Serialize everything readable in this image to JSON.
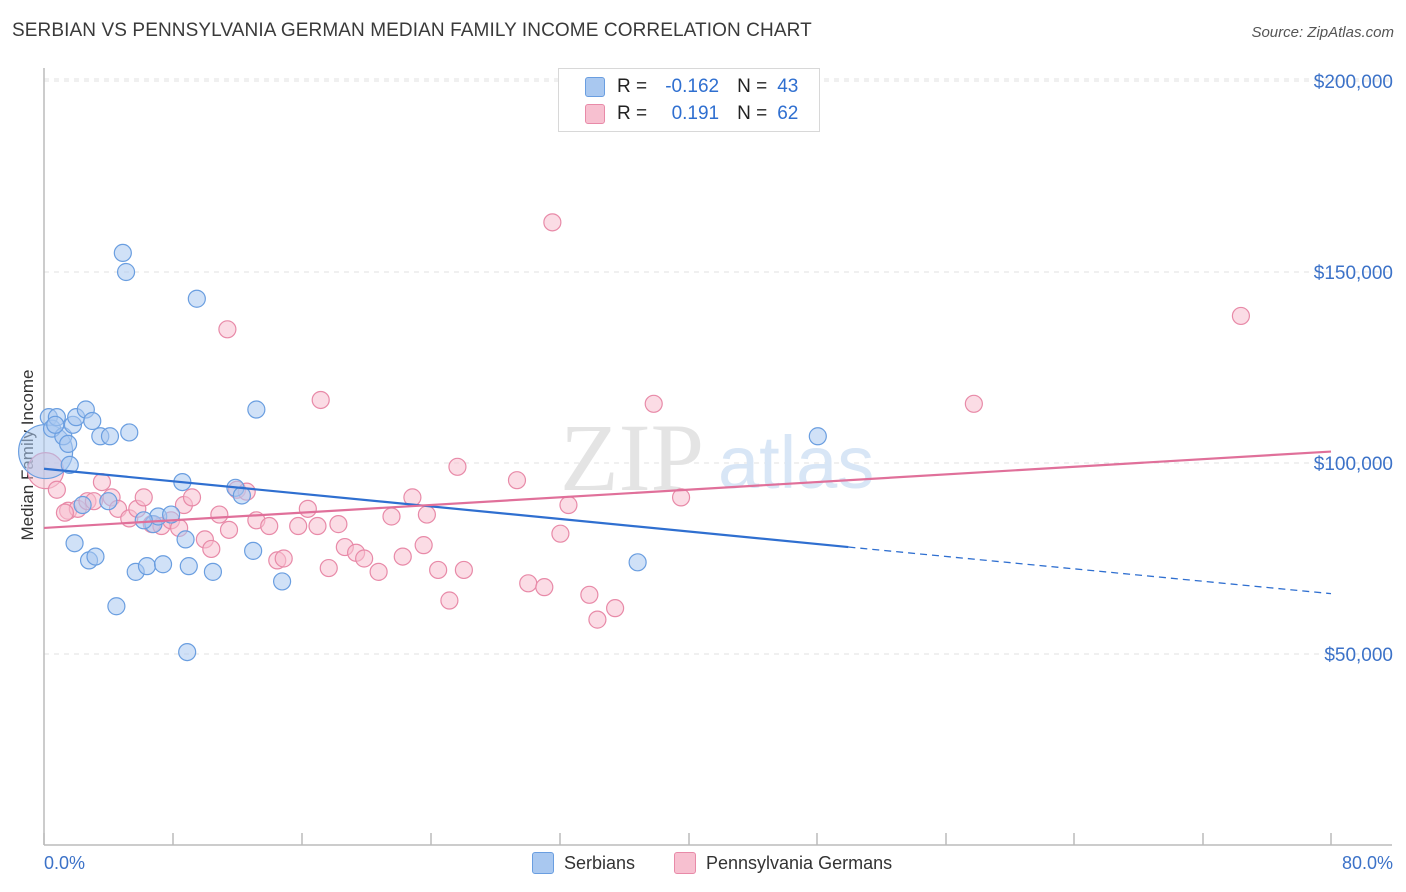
{
  "title": "SERBIAN VS PENNSYLVANIA GERMAN MEDIAN FAMILY INCOME CORRELATION CHART",
  "source": "Source: ZipAtlas.com",
  "watermark": {
    "zip": "ZIP",
    "atlas": "atlas"
  },
  "legend": {
    "r_label": "R =",
    "n_label": "N =",
    "serbians": {
      "r": "-0.162",
      "n": "43"
    },
    "pa_germans": {
      "r": "0.191",
      "n": "62"
    }
  },
  "colors": {
    "blue_fill": "#a9c8f0",
    "blue_stroke": "#6a9ee0",
    "blue_line": "#2f6fd0",
    "pink_fill": "#f7c0d0",
    "pink_stroke": "#e88aa8",
    "pink_line": "#e0709a",
    "tick_text": "#3c72c8",
    "grid": "#e2e2e2"
  },
  "chart_data": {
    "type": "scatter",
    "title": "SERBIAN VS PENNSYLVANIA GERMAN MEDIAN FAMILY INCOME CORRELATION CHART",
    "xlabel": "",
    "ylabel": "Median Family Income",
    "xlim": [
      0,
      80
    ],
    "ylim": [
      0,
      210000
    ],
    "x_tick_labels": [
      "0.0%",
      "80.0%"
    ],
    "y_ticks": [
      {
        "value": 50000,
        "label": "$50,000"
      },
      {
        "value": 100000,
        "label": "$100,000"
      },
      {
        "value": 150000,
        "label": "$150,000"
      },
      {
        "value": 200000,
        "label": "$200,000"
      }
    ],
    "series": [
      {
        "name": "Serbians",
        "r": -0.162,
        "n": 43,
        "trend": {
          "x0": 0,
          "y0": 98500,
          "x1": 50,
          "y1": 78000,
          "x_dash_end": 80,
          "y_dash_end": 65800
        },
        "points": [
          [
            0.1,
            103000,
            3
          ],
          [
            0.3,
            112000,
            1
          ],
          [
            0.5,
            109000,
            1
          ],
          [
            0.8,
            112000,
            1
          ],
          [
            1.2,
            107000,
            1
          ],
          [
            1.5,
            105000,
            1
          ],
          [
            1.8,
            110000,
            1
          ],
          [
            2.0,
            112000,
            1
          ],
          [
            2.6,
            114000,
            1
          ],
          [
            2.4,
            89000,
            1
          ],
          [
            1.6,
            99500,
            1
          ],
          [
            3.5,
            107000,
            1
          ],
          [
            4.1,
            107000,
            1
          ],
          [
            5.3,
            108000,
            1
          ],
          [
            4.9,
            155000,
            1
          ],
          [
            5.1,
            150000,
            1
          ],
          [
            9.5,
            143000,
            1
          ],
          [
            13.2,
            114000,
            1
          ],
          [
            4.0,
            90000,
            1
          ],
          [
            1.9,
            79000,
            1
          ],
          [
            2.8,
            74500,
            1
          ],
          [
            3.2,
            75500,
            1
          ],
          [
            4.5,
            62500,
            1
          ],
          [
            5.7,
            71500,
            1
          ],
          [
            6.4,
            73000,
            1
          ],
          [
            6.8,
            84000,
            1
          ],
          [
            7.1,
            86000,
            1
          ],
          [
            7.4,
            73500,
            1
          ],
          [
            7.9,
            86500,
            1
          ],
          [
            8.6,
            95000,
            1
          ],
          [
            8.8,
            80000,
            1
          ],
          [
            9.0,
            73000,
            1
          ],
          [
            10.5,
            71500,
            1
          ],
          [
            11.9,
            93500,
            1
          ],
          [
            12.3,
            91500,
            1
          ],
          [
            13.0,
            77000,
            1
          ],
          [
            14.8,
            69000,
            1
          ],
          [
            8.9,
            50500,
            1
          ],
          [
            36.9,
            74000,
            1
          ],
          [
            48.1,
            107000,
            1
          ],
          [
            0.7,
            110000,
            1
          ],
          [
            3.0,
            111000,
            1
          ],
          [
            6.2,
            85000,
            1
          ]
        ]
      },
      {
        "name": "Pennsylvania Germans",
        "r": 0.191,
        "n": 62,
        "trend": {
          "x0": 0,
          "y0": 83000,
          "x1": 80,
          "y1": 103000
        },
        "points": [
          [
            0.1,
            98000,
            2
          ],
          [
            0.8,
            93000,
            1
          ],
          [
            1.5,
            87500,
            1
          ],
          [
            2.1,
            88000,
            1
          ],
          [
            2.7,
            90000,
            1
          ],
          [
            3.1,
            90000,
            1
          ],
          [
            3.6,
            95000,
            1
          ],
          [
            4.2,
            91000,
            1
          ],
          [
            4.6,
            88000,
            1
          ],
          [
            5.3,
            85500,
            1
          ],
          [
            5.8,
            88000,
            1
          ],
          [
            6.2,
            91000,
            1
          ],
          [
            6.7,
            84000,
            1
          ],
          [
            7.3,
            83500,
            1
          ],
          [
            7.9,
            85000,
            1
          ],
          [
            8.4,
            83000,
            1
          ],
          [
            8.7,
            89000,
            1
          ],
          [
            9.2,
            91000,
            1
          ],
          [
            10.0,
            80000,
            1
          ],
          [
            10.4,
            77500,
            1
          ],
          [
            10.9,
            86500,
            1
          ],
          [
            11.5,
            82500,
            1
          ],
          [
            11.4,
            135000,
            1
          ],
          [
            12.0,
            93000,
            1
          ],
          [
            12.6,
            92500,
            1
          ],
          [
            13.2,
            85000,
            1
          ],
          [
            14.0,
            83500,
            1
          ],
          [
            14.5,
            74500,
            1
          ],
          [
            14.9,
            75000,
            1
          ],
          [
            15.8,
            83500,
            1
          ],
          [
            16.4,
            88000,
            1
          ],
          [
            17.0,
            83500,
            1
          ],
          [
            17.2,
            116500,
            1
          ],
          [
            17.7,
            72500,
            1
          ],
          [
            18.3,
            84000,
            1
          ],
          [
            18.7,
            78000,
            1
          ],
          [
            19.4,
            76500,
            1
          ],
          [
            19.9,
            75000,
            1
          ],
          [
            20.8,
            71500,
            1
          ],
          [
            21.6,
            86000,
            1
          ],
          [
            22.3,
            75500,
            1
          ],
          [
            22.9,
            91000,
            1
          ],
          [
            23.6,
            78500,
            1
          ],
          [
            23.8,
            86500,
            1
          ],
          [
            24.5,
            72000,
            1
          ],
          [
            25.2,
            64000,
            1
          ],
          [
            25.7,
            99000,
            1
          ],
          [
            26.1,
            72000,
            1
          ],
          [
            29.4,
            95500,
            1
          ],
          [
            30.1,
            68500,
            1
          ],
          [
            31.1,
            67500,
            1
          ],
          [
            31.6,
            163000,
            1
          ],
          [
            32.1,
            81500,
            1
          ],
          [
            32.6,
            89000,
            1
          ],
          [
            33.9,
            65500,
            1
          ],
          [
            34.4,
            59000,
            1
          ],
          [
            35.5,
            62000,
            1
          ],
          [
            37.9,
            115500,
            1
          ],
          [
            39.6,
            91000,
            1
          ],
          [
            57.8,
            115500,
            1
          ],
          [
            74.4,
            138500,
            1
          ],
          [
            1.3,
            87000,
            1
          ]
        ]
      }
    ]
  }
}
